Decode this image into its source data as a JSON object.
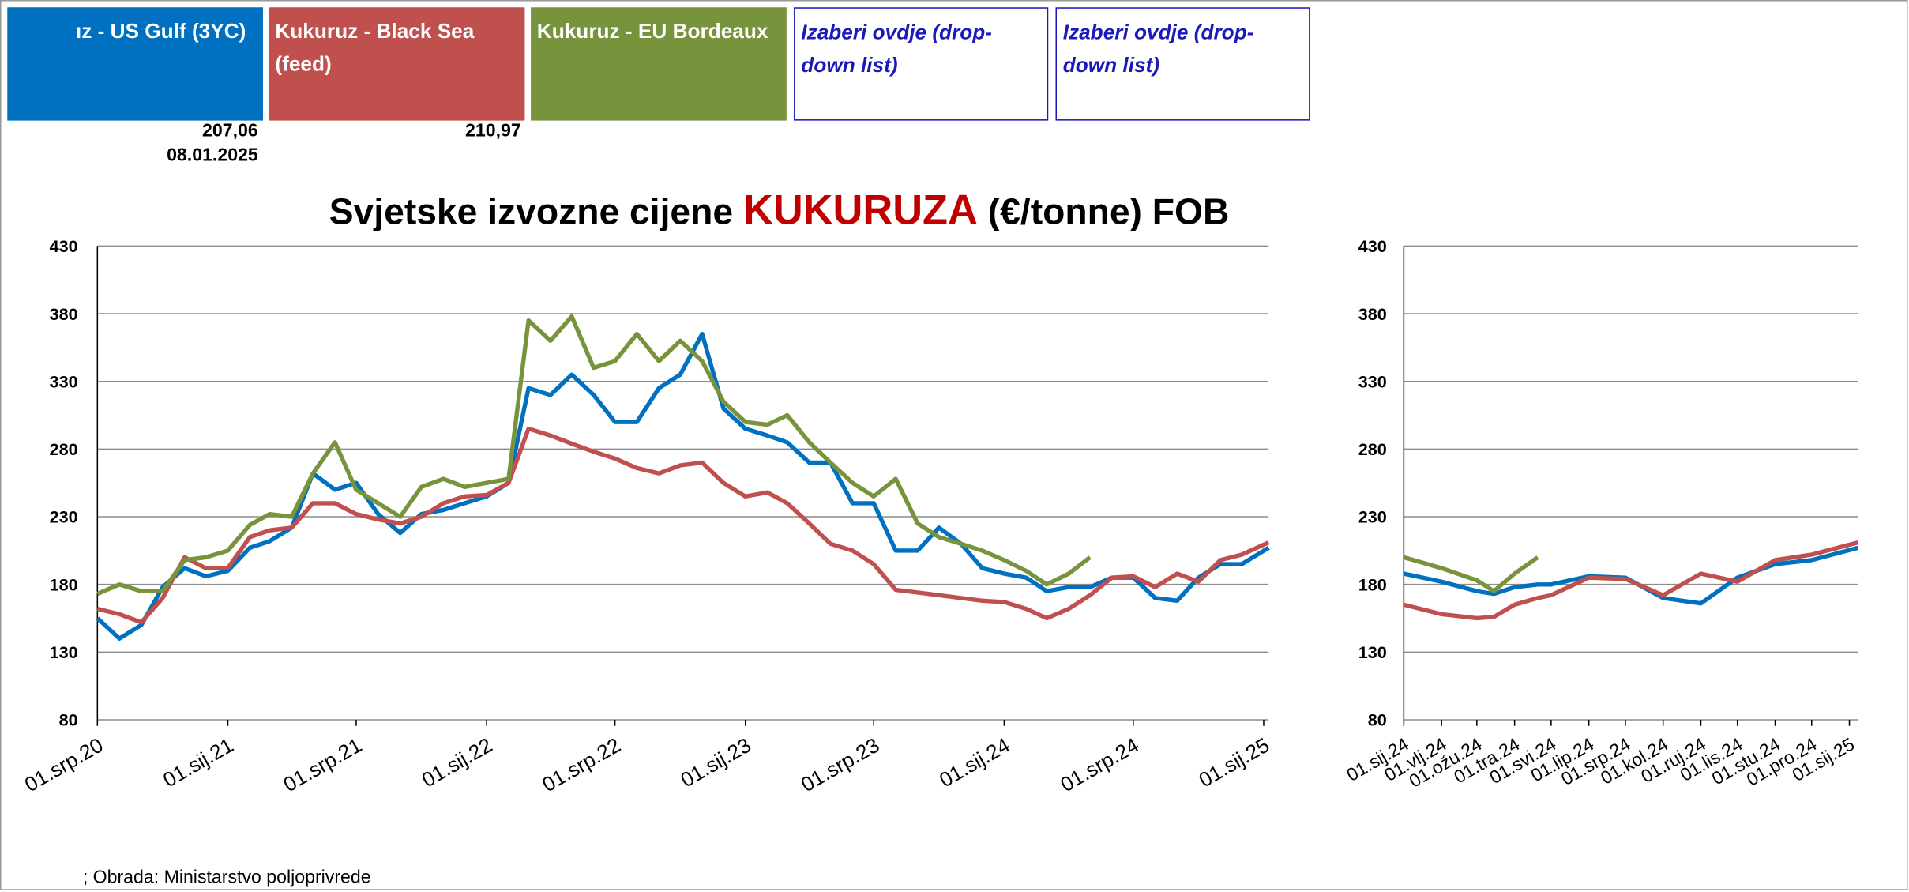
{
  "header": {
    "gulf_price": "207,06",
    "gulf_date": "08.01.2025",
    "black_sea_price": "210,97",
    "pick_1": "Izaberi ovdje (drop-down list)",
    "pick_2": "Izaberi ovdje (drop-down list)"
  },
  "source": "; Obrada: Ministarstvo poljoprivrede",
  "chart_data": [
    {
      "type": "line",
      "title": "Svjetske izvozne cijene",
      "title_highlight": "KUKURUZA",
      "title_suffix": "(€/tonne) FOB",
      "x": [
        "2020-07-01",
        "2020-08-01",
        "2020-09-01",
        "2020-10-01",
        "2020-11-01",
        "2020-12-01",
        "2021-01-01",
        "2021-02-01",
        "2021-03-01",
        "2021-04-01",
        "2021-05-01",
        "2021-06-01",
        "2021-07-01",
        "2021-08-01",
        "2021-09-01",
        "2021-10-01",
        "2021-11-01",
        "2021-12-01",
        "2022-01-01",
        "2022-02-01",
        "2022-03-01",
        "2022-04-01",
        "2022-05-01",
        "2022-06-01",
        "2022-07-01",
        "2022-08-01",
        "2022-09-01",
        "2022-10-01",
        "2022-11-01",
        "2022-12-01",
        "2023-01-01",
        "2023-02-01",
        "2023-03-01",
        "2023-04-01",
        "2023-05-01",
        "2023-06-01",
        "2023-07-01",
        "2023-08-01",
        "2023-09-01",
        "2023-10-01",
        "2023-11-01",
        "2023-12-01",
        "2024-01-01",
        "2024-02-01",
        "2024-03-01",
        "2024-04-01",
        "2024-05-01",
        "2024-06-01",
        "2024-07-01",
        "2024-08-01",
        "2024-09-01",
        "2024-10-01",
        "2024-11-01",
        "2024-12-01",
        "2025-01-08"
      ],
      "series": [
        {
          "name": "ız - US Gulf (3YC)",
          "color": "#0070c0",
          "values": [
            155,
            140,
            150,
            178,
            192,
            186,
            190,
            207,
            212,
            222,
            262,
            250,
            255,
            232,
            218,
            232,
            235,
            240,
            245,
            255,
            325,
            320,
            335,
            320,
            300,
            300,
            325,
            335,
            365,
            310,
            295,
            290,
            285,
            270,
            270,
            240,
            240,
            205,
            205,
            222,
            210,
            192,
            188,
            185,
            175,
            178,
            178,
            185,
            185,
            170,
            168,
            185,
            195,
            195,
            207.06
          ]
        },
        {
          "name": "Kukuruz - Black Sea (feed)",
          "color": "#c0504d",
          "values": [
            162,
            158,
            152,
            170,
            200,
            192,
            192,
            215,
            220,
            222,
            240,
            240,
            232,
            228,
            225,
            230,
            240,
            245,
            246,
            255,
            295,
            290,
            284,
            278,
            273,
            266,
            262,
            268,
            270,
            255,
            245,
            248,
            240,
            225,
            210,
            205,
            195,
            176,
            174,
            172,
            170,
            168,
            167,
            162,
            155,
            162,
            172,
            185,
            186,
            178,
            188,
            182,
            198,
            202,
            210.97
          ]
        },
        {
          "name": "Kukuruz - EU Bordeaux",
          "color": "#77933c",
          "values": [
            173,
            180,
            175,
            175,
            198,
            200,
            205,
            224,
            232,
            230,
            262,
            285,
            250,
            240,
            230,
            252,
            258,
            252,
            255,
            258,
            375,
            360,
            378,
            340,
            345,
            365,
            345,
            360,
            345,
            315,
            300,
            298,
            305,
            285,
            270,
            255,
            245,
            258,
            225,
            215,
            210,
            205,
            198,
            190,
            180,
            188,
            200,
            null,
            null,
            null,
            null,
            null,
            null,
            null,
            null
          ]
        }
      ],
      "xlim": [
        "2020-07-01",
        "2025-01-08"
      ],
      "xticks": [
        {
          "value": "2020-07-01",
          "label": "01.srp.20"
        },
        {
          "value": "2021-01-01",
          "label": "01.sij.21"
        },
        {
          "value": "2021-07-01",
          "label": "01.srp.21"
        },
        {
          "value": "2022-01-01",
          "label": "01.sij.22"
        },
        {
          "value": "2022-07-01",
          "label": "01.srp.22"
        },
        {
          "value": "2023-01-01",
          "label": "01.sij.23"
        },
        {
          "value": "2023-07-01",
          "label": "01.srp.23"
        },
        {
          "value": "2024-01-01",
          "label": "01.sij.24"
        },
        {
          "value": "2024-07-01",
          "label": "01.srp.24"
        },
        {
          "value": "2025-01-01",
          "label": "01.sij.25"
        }
      ],
      "ylim": [
        80,
        430
      ],
      "yticks": [
        80,
        130,
        180,
        230,
        280,
        330,
        380,
        430
      ],
      "grid": true
    },
    {
      "type": "line",
      "x": [
        "2024-01-01",
        "2024-02-01",
        "2024-03-01",
        "2024-03-15",
        "2024-04-01",
        "2024-04-20",
        "2024-05-01",
        "2024-06-01",
        "2024-07-01",
        "2024-08-01",
        "2024-09-01",
        "2024-10-01",
        "2024-11-01",
        "2024-12-01",
        "2025-01-08"
      ],
      "series": [
        {
          "color": "#0070c0",
          "values": [
            188,
            182,
            175,
            173,
            178,
            180,
            180,
            186,
            185,
            170,
            166,
            185,
            195,
            198,
            207.06
          ]
        },
        {
          "color": "#c0504d",
          "values": [
            165,
            158,
            155,
            156,
            165,
            170,
            172,
            185,
            184,
            172,
            188,
            182,
            198,
            202,
            210.97
          ]
        },
        {
          "color": "#77933c",
          "values": [
            200,
            192,
            183,
            175,
            188,
            200,
            null,
            null,
            null,
            null,
            null,
            null,
            null,
            null,
            null
          ]
        }
      ],
      "xlim": [
        "2024-01-01",
        "2025-01-08"
      ],
      "xticks": [
        {
          "value": "2024-01-01",
          "label": "01.sij.24"
        },
        {
          "value": "2024-02-01",
          "label": "01.vlj.24"
        },
        {
          "value": "2024-03-01",
          "label": "01.ožu.24"
        },
        {
          "value": "2024-04-01",
          "label": "01.tra.24"
        },
        {
          "value": "2024-05-01",
          "label": "01.svi.24"
        },
        {
          "value": "2024-06-01",
          "label": "01.lip.24"
        },
        {
          "value": "2024-07-01",
          "label": "01.srp.24"
        },
        {
          "value": "2024-08-01",
          "label": "01.kol.24"
        },
        {
          "value": "2024-09-01",
          "label": "01.ruj.24"
        },
        {
          "value": "2024-10-01",
          "label": "01.lis.24"
        },
        {
          "value": "2024-11-01",
          "label": "01.stu.24"
        },
        {
          "value": "2024-12-01",
          "label": "01.pro.24"
        },
        {
          "value": "2025-01-01",
          "label": "01.sij.25"
        }
      ],
      "ylim": [
        80,
        430
      ],
      "yticks": [
        80,
        130,
        180,
        230,
        280,
        330,
        380,
        430
      ],
      "grid": true
    }
  ]
}
